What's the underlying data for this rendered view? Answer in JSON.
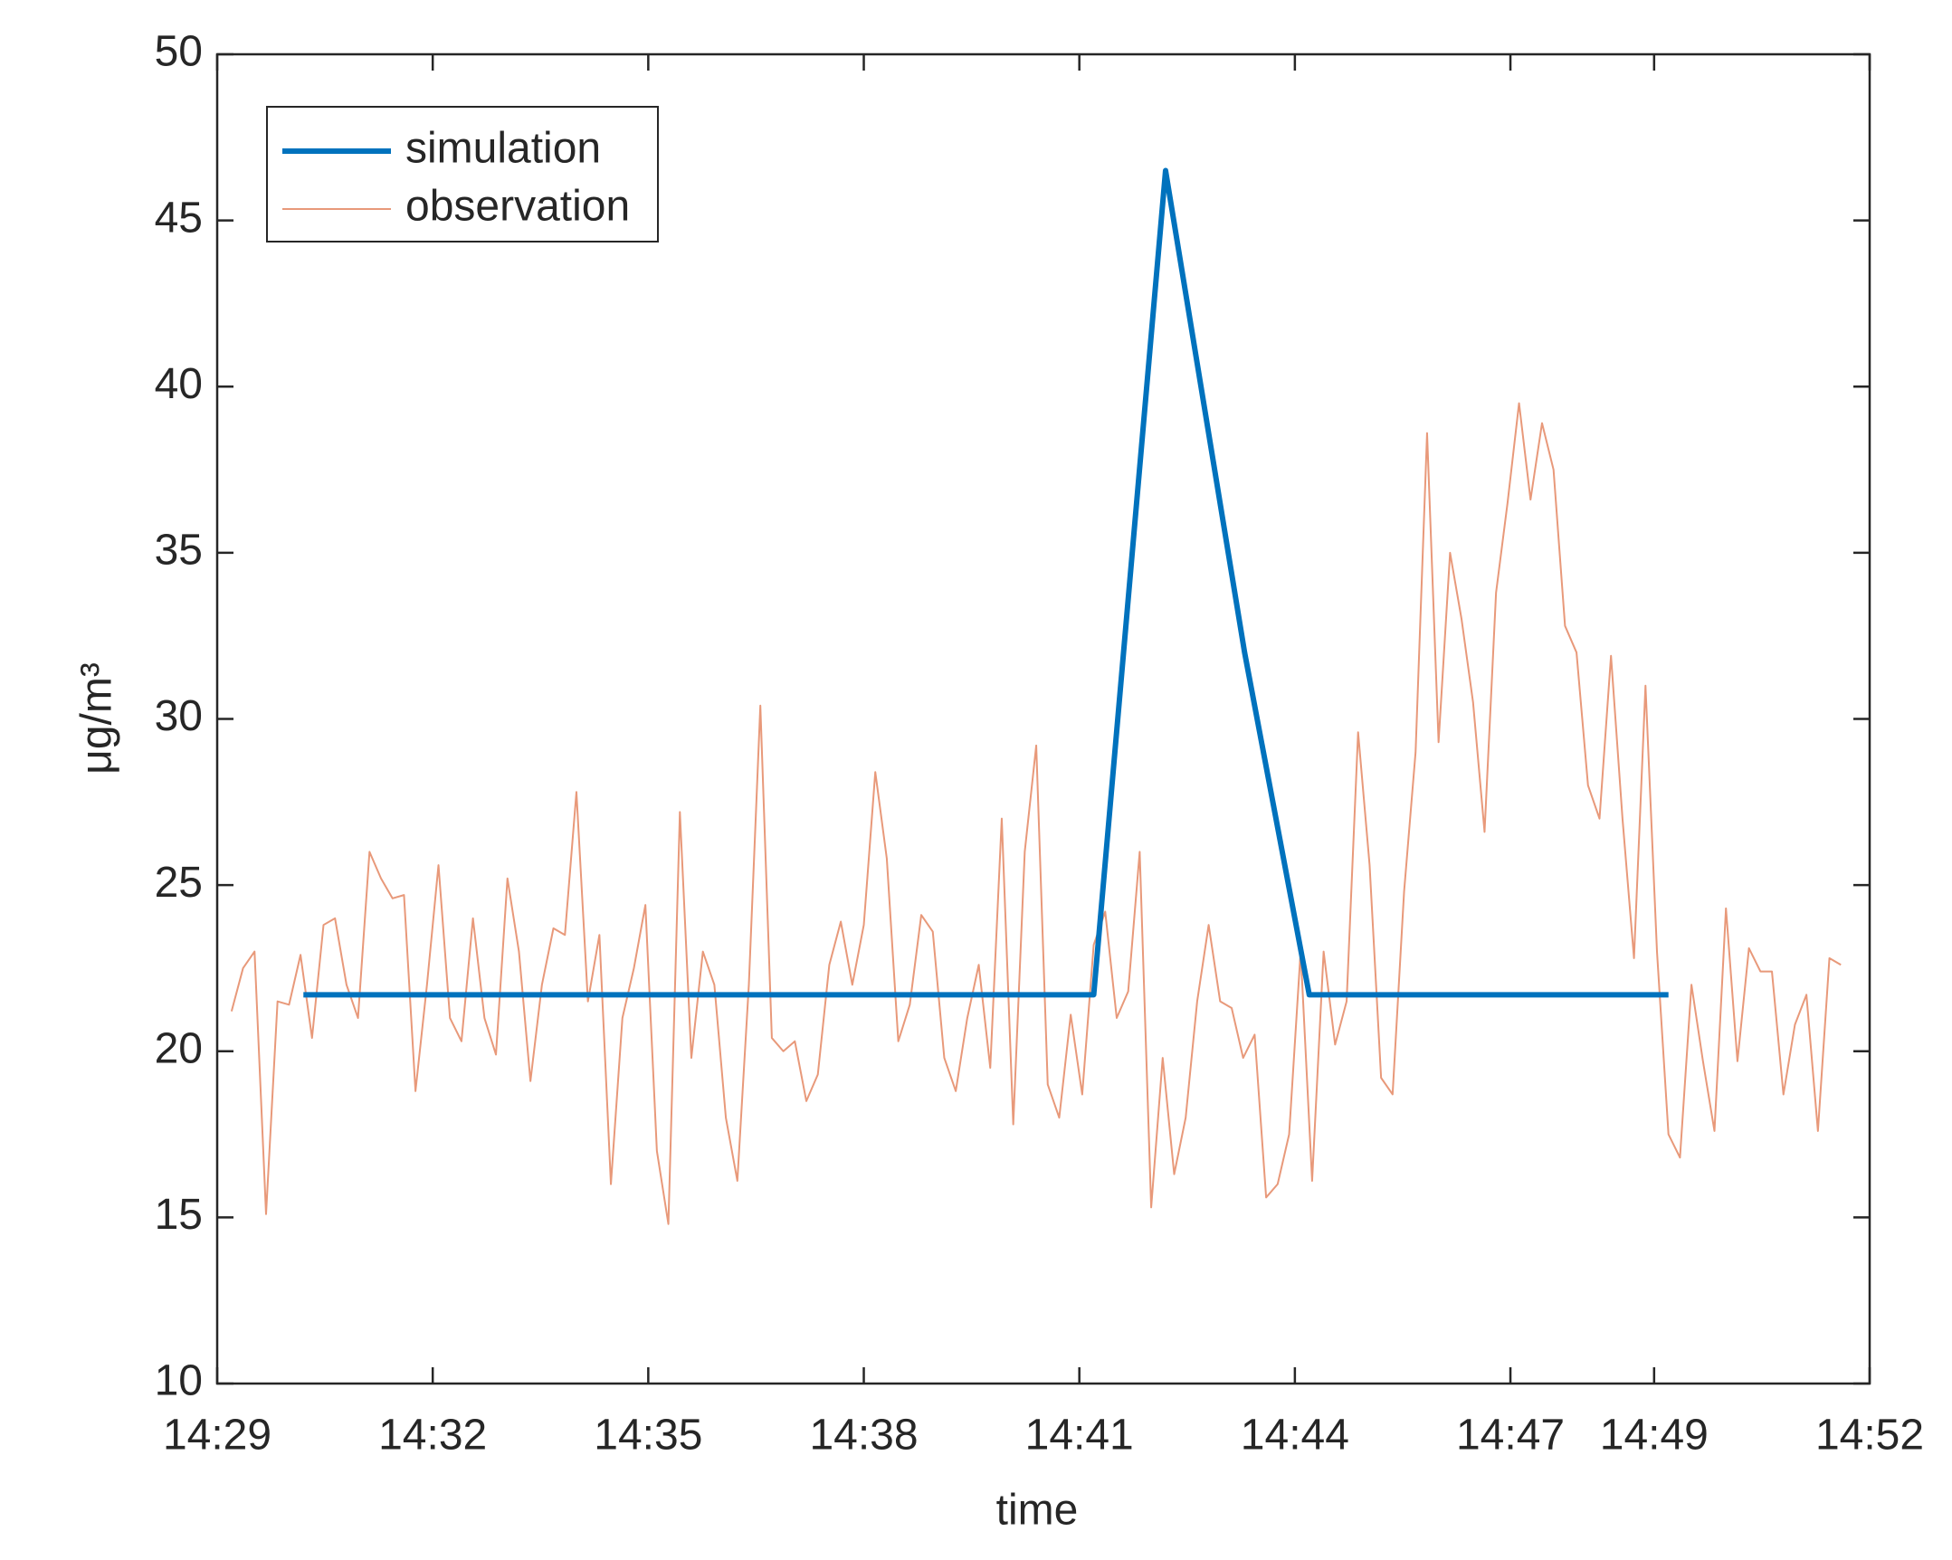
{
  "chart_data": {
    "type": "line",
    "xlabel": "time",
    "ylabel": "μg/m³",
    "xlim": [
      869,
      892
    ],
    "ylim": [
      10,
      50
    ],
    "xticks": [
      {
        "value": 869,
        "label": "14:29"
      },
      {
        "value": 872,
        "label": "14:32"
      },
      {
        "value": 875,
        "label": "14:35"
      },
      {
        "value": 878,
        "label": "14:38"
      },
      {
        "value": 881,
        "label": "14:41"
      },
      {
        "value": 884,
        "label": "14:44"
      },
      {
        "value": 887,
        "label": "14:47"
      },
      {
        "value": 889,
        "label": "14:49"
      },
      {
        "value": 892,
        "label": "14:52"
      }
    ],
    "yticks": [
      10,
      15,
      20,
      25,
      30,
      35,
      40,
      45,
      50
    ],
    "legend": "upper left",
    "grid": false,
    "series": [
      {
        "name": "simulation",
        "color": "#0072bd",
        "width": 6,
        "x": [
          870.2,
          881.2,
          882.2,
          883.3,
          884.2,
          889.2
        ],
        "values": [
          21.7,
          21.7,
          46.5,
          32,
          21.7,
          21.7
        ]
      },
      {
        "name": "observation",
        "color": "#e8997a",
        "width": 2,
        "x": [
          869.2,
          869.36,
          869.52,
          869.68,
          869.84,
          870,
          870.16,
          870.32,
          870.48,
          870.64,
          870.8,
          870.96,
          871.12,
          871.28,
          871.44,
          871.6,
          871.76,
          871.92,
          872.08,
          872.24,
          872.4,
          872.56,
          872.72,
          872.88,
          873.04,
          873.2,
          873.36,
          873.52,
          873.68,
          873.84,
          874,
          874.16,
          874.32,
          874.48,
          874.64,
          874.8,
          874.96,
          875.12,
          875.28,
          875.44,
          875.6,
          875.76,
          875.92,
          876.08,
          876.24,
          876.4,
          876.56,
          876.72,
          876.88,
          877.04,
          877.2,
          877.36,
          877.52,
          877.68,
          877.84,
          878,
          878.16,
          878.32,
          878.48,
          878.64,
          878.8,
          878.96,
          879.12,
          879.28,
          879.44,
          879.6,
          879.76,
          879.92,
          880.08,
          880.24,
          880.4,
          880.56,
          880.72,
          880.88,
          881.04,
          881.2,
          881.36,
          881.52,
          881.68,
          881.84,
          882,
          882.16,
          882.32,
          882.48,
          882.64,
          882.8,
          882.96,
          883.12,
          883.28,
          883.44,
          883.6,
          883.76,
          883.92,
          884.08,
          884.24,
          884.4,
          884.56,
          884.72,
          884.88,
          885.04,
          885.2,
          885.36,
          885.52,
          885.68,
          885.84,
          886,
          886.16,
          886.32,
          886.48,
          886.64,
          886.8,
          886.96,
          887.12,
          887.28,
          887.44,
          887.6,
          887.76,
          887.92,
          888.08,
          888.24,
          888.4,
          888.56,
          888.72,
          888.88,
          889.04,
          889.2,
          889.36,
          889.52,
          889.68,
          889.84,
          890,
          890.16,
          890.32,
          890.48,
          890.64,
          890.8,
          890.96,
          891.12,
          891.28,
          891.44,
          891.6
        ],
        "values": [
          21.2,
          22.5,
          23,
          15.1,
          21.5,
          21.4,
          22.9,
          20.4,
          23.8,
          24,
          22,
          21,
          26,
          25.2,
          24.6,
          24.7,
          18.8,
          22,
          25.6,
          21,
          20.3,
          24,
          21,
          19.9,
          25.2,
          23,
          19.1,
          22,
          23.7,
          23.5,
          27.8,
          21.5,
          23.5,
          16,
          21,
          22.5,
          24.4,
          17,
          14.8,
          27.2,
          19.8,
          23,
          22,
          18,
          16.1,
          22,
          30.4,
          20.4,
          20,
          20.3,
          18.5,
          19.3,
          22.6,
          23.9,
          22,
          23.8,
          28.4,
          25.8,
          20.3,
          21.4,
          24.1,
          23.6,
          19.8,
          18.8,
          21,
          22.6,
          19.5,
          27,
          17.8,
          26,
          29.2,
          19,
          18,
          21.1,
          18.7,
          23.2,
          24.2,
          21,
          21.8,
          26,
          15.3,
          19.8,
          16.3,
          18,
          21.5,
          23.8,
          21.5,
          21.3,
          19.8,
          20.5,
          15.6,
          16,
          17.5,
          23,
          16.1,
          23,
          20.2,
          21.5,
          29.6,
          25.6,
          19.2,
          18.7,
          24.8,
          29,
          38.6,
          29.3,
          35,
          33,
          30.5,
          26.6,
          33.8,
          36.5,
          39.5,
          36.6,
          38.9,
          37.5,
          32.8,
          32,
          28,
          27,
          31.9,
          27,
          22.8,
          31,
          23,
          17.5,
          16.8,
          22,
          19.7,
          17.6,
          24.3,
          19.7,
          23.1,
          22.4,
          22.4,
          18.7,
          20.8,
          21.7,
          17.6,
          22.8,
          22.6
        ]
      }
    ]
  }
}
